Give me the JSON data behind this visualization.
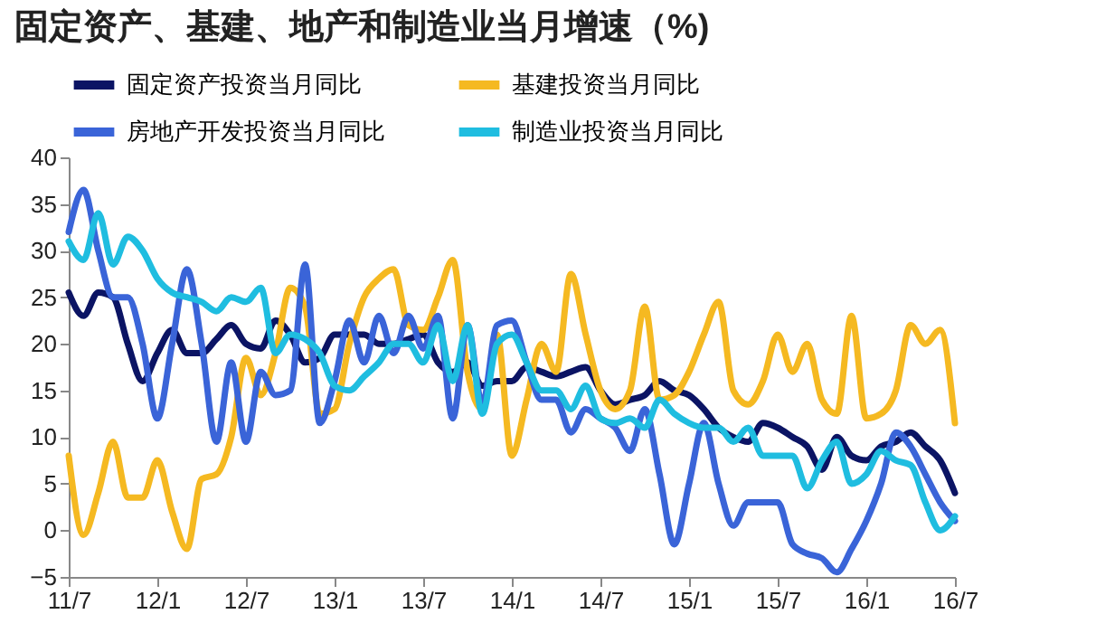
{
  "chart_data": {
    "type": "line",
    "title": "固定资产、基建、地产和制造业当月增速（%)",
    "categories": [
      "11/7",
      null,
      null,
      null,
      null,
      null,
      "12/1",
      null,
      null,
      null,
      null,
      null,
      "12/7",
      null,
      null,
      null,
      null,
      null,
      "13/1",
      null,
      null,
      null,
      null,
      null,
      "13/7",
      null,
      null,
      null,
      null,
      null,
      "14/1",
      null,
      null,
      null,
      null,
      null,
      "14/7",
      null,
      null,
      null,
      null,
      null,
      "15/1",
      null,
      null,
      null,
      null,
      null,
      "15/7",
      null,
      null,
      null,
      null,
      null,
      "16/1",
      null,
      null,
      null,
      null,
      null,
      "16/7"
    ],
    "series": [
      {
        "name": "固定资产投资当月同比",
        "color": "#0b1464",
        "values": [
          25.5,
          23,
          25.5,
          25,
          20,
          16,
          19,
          21.5,
          19,
          19,
          20.5,
          22,
          20,
          19.5,
          22.5,
          21,
          18,
          18.5,
          21,
          21,
          21,
          20,
          20,
          20.5,
          21,
          18,
          17,
          18,
          15.5,
          16,
          16,
          17.5,
          17,
          16.5,
          17,
          17.5,
          15,
          13.5,
          14,
          14.5,
          16,
          15,
          14.5,
          13,
          11,
          10,
          9.5,
          11.5,
          11,
          10,
          9,
          6.5,
          10,
          8,
          7.5,
          9,
          9.5,
          10.5,
          9,
          7.5,
          4
        ]
      },
      {
        "name": "基建投资当月同比",
        "color": "#f5b921",
        "values": [
          8,
          -0.5,
          4,
          9.5,
          3.5,
          3.5,
          7.5,
          2,
          -2,
          5.5,
          6,
          10,
          18.5,
          14.5,
          19,
          26,
          24,
          12.5,
          13,
          20,
          25,
          27,
          28,
          22,
          21.5,
          25,
          29,
          17,
          13,
          21,
          8,
          14,
          20,
          17,
          27.5,
          21,
          15,
          13,
          15,
          24,
          14,
          14.5,
          17,
          21,
          24.5,
          15,
          13.5,
          16,
          21,
          17,
          20,
          14,
          12.5,
          23,
          12,
          12.5,
          15,
          22,
          20,
          21.5,
          11.5
        ]
      },
      {
        "name": "房地产开发投资当月同比",
        "color": "#3a64d8",
        "values": [
          32,
          36.5,
          30,
          25,
          25,
          20,
          12,
          20,
          28,
          20,
          9.5,
          18,
          9.5,
          17,
          14.5,
          15,
          28.5,
          11.5,
          16,
          22.5,
          18,
          23,
          19,
          23,
          19.5,
          23,
          12,
          22,
          13.5,
          22,
          22.5,
          18,
          14,
          14,
          10.5,
          13,
          12,
          11,
          8.5,
          13,
          6,
          -1.5,
          5,
          11.5,
          5,
          0.5,
          3,
          3,
          3,
          -1.5,
          -2.5,
          -3,
          -4.5,
          -2,
          1,
          5,
          10.5,
          9,
          6,
          3,
          1
        ]
      },
      {
        "name": "制造业投资当月同比",
        "color": "#1fbde0",
        "values": [
          31,
          29,
          34,
          28.5,
          31.5,
          30,
          27,
          25.5,
          25,
          24.5,
          23.5,
          25,
          24.5,
          26,
          19,
          21,
          20.5,
          19,
          15.5,
          15,
          16.5,
          18,
          20,
          20,
          18,
          22,
          16,
          22,
          12.5,
          20,
          21,
          18,
          15,
          15,
          13,
          15.5,
          12,
          11.5,
          12,
          11,
          14,
          12.5,
          11.5,
          11,
          11,
          9.5,
          11,
          8,
          8,
          8,
          4.5,
          7.5,
          9.5,
          5,
          6,
          8.5,
          7.5,
          7,
          3,
          0,
          1.5
        ]
      }
    ],
    "ylim": [
      -5,
      40
    ],
    "yticks": [
      -5,
      0,
      5,
      10,
      15,
      20,
      25,
      30,
      35,
      40
    ],
    "grid": false,
    "legend": "top",
    "line_style": "solid",
    "marker": "none"
  }
}
